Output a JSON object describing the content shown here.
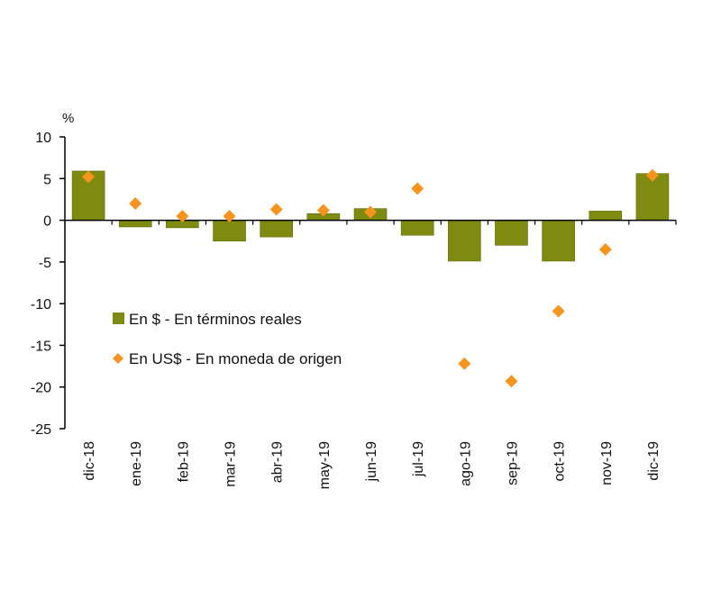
{
  "chart_data": {
    "type": "bar",
    "unit_label": "%",
    "categories": [
      "dic-18",
      "ene-19",
      "feb-19",
      "mar-19",
      "abr-19",
      "may-19",
      "jun-19",
      "jul-19",
      "ago-19",
      "sep-19",
      "oct-19",
      "nov-19",
      "dic-19"
    ],
    "series": [
      {
        "name": "En $ - En términos reales",
        "type": "bar",
        "color": "#7f8b10",
        "values": [
          5.9,
          -0.8,
          -0.9,
          -2.5,
          -2.0,
          0.8,
          1.4,
          -1.8,
          -4.9,
          -3.0,
          -4.9,
          1.1,
          5.6
        ]
      },
      {
        "name": "En US$ - En moneda de origen",
        "type": "scatter",
        "marker": "diamond",
        "color": "#f7941d",
        "values": [
          5.2,
          2.0,
          0.5,
          0.5,
          1.3,
          1.2,
          1.0,
          3.8,
          -17.2,
          -19.3,
          -10.9,
          -3.5,
          5.4
        ]
      }
    ],
    "ylim": [
      -25,
      10
    ],
    "yticks": [
      10,
      5,
      0,
      -5,
      -10,
      -15,
      -20,
      -25
    ],
    "grid": false,
    "legend_position": "left-center, inside plot"
  }
}
